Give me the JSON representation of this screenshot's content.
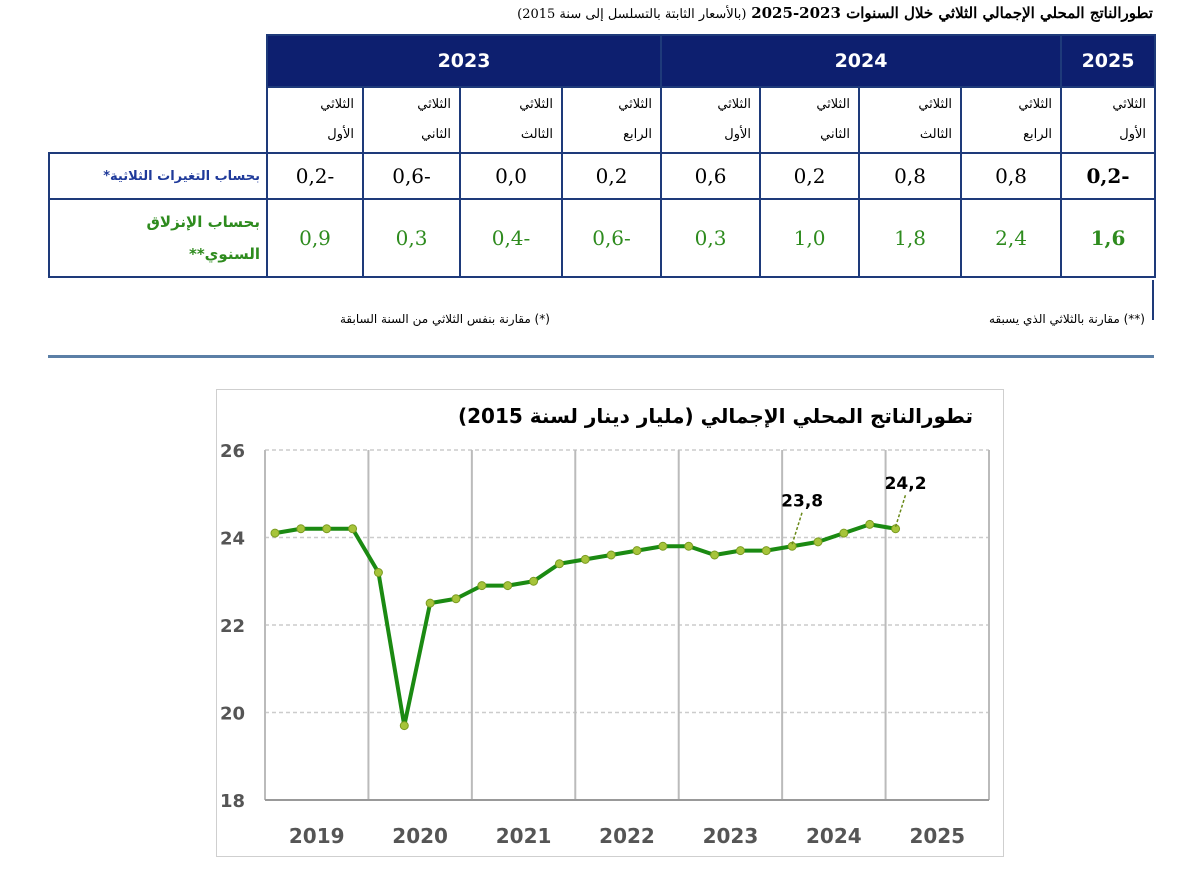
{
  "header": {
    "title": "تطورالناتج المحلي الإجمالي الثلاثي خلال السنوات 2023-2025",
    "subtitle": "(بالأسعار الثابتة بالتسلسل إلى سنة 2015)"
  },
  "table": {
    "years": [
      "2025",
      "2024",
      "2023"
    ],
    "quarters": [
      [
        "الثلاثي",
        "الأول"
      ],
      [
        "الثلاثي",
        "الرابع"
      ],
      [
        "الثلاثي",
        "الثالث"
      ],
      [
        "الثلاثي",
        "الثاني"
      ],
      [
        "الثلاثي",
        "الأول"
      ],
      [
        "الثلاثي",
        "الرابع"
      ],
      [
        "الثلاثي",
        "الثالث"
      ],
      [
        "الثلاثي",
        "الثاني"
      ],
      [
        "الثلاثي",
        "الأول"
      ]
    ],
    "rows": [
      {
        "label": "بحساب التغيرات الثلاثية*",
        "values": [
          "-0,2",
          "0,8",
          "0,8",
          "0,2",
          "0,6",
          "0,2",
          "0,0",
          "-0,6",
          "-0,2"
        ]
      },
      {
        "label_lines": [
          "بحساب الإنزلاق",
          "السنوي**"
        ],
        "values": [
          "1,6",
          "2,4",
          "1,8",
          "1,0",
          "0,3",
          "-0,6",
          "-0,4",
          "0,3",
          "0,9"
        ]
      }
    ]
  },
  "footnotes": {
    "quarterly": "(**) مقارنة بالثلاثي الذي يسبقه",
    "annual": "(*) مقارنة بنفس الثلاثي من السنة السابقة"
  },
  "colors": {
    "header_bg": "#0d1f6f",
    "line": "#1b8a12",
    "marker": "#a6c43a",
    "blue_label": "#1f3a9a",
    "green_text": "#2e8b1e"
  },
  "chart_data": {
    "type": "line",
    "title": "تطورالناتج المحلي الإجمالي (مليار دينار لسنة 2015)",
    "xlabel": "",
    "ylabel": "",
    "x_labels": [
      "2019",
      "2020",
      "2021",
      "2022",
      "2023",
      "2024",
      "2025"
    ],
    "ylim": [
      18,
      26
    ],
    "yticks": [
      18,
      20,
      22,
      24,
      26
    ],
    "grid": true,
    "series": [
      {
        "values": [
          24.1,
          24.2,
          24.2,
          24.2,
          23.2,
          19.7,
          22.5,
          22.6,
          22.9,
          22.9,
          23.0,
          23.4,
          23.5,
          23.6,
          23.7,
          23.8,
          23.8,
          23.6,
          23.7,
          23.7,
          23.8,
          23.9,
          24.1,
          24.3,
          24.2
        ]
      }
    ],
    "annotations": [
      {
        "text": "23,8",
        "point_index": 20
      },
      {
        "text": "24,2",
        "point_index": 24
      }
    ]
  }
}
